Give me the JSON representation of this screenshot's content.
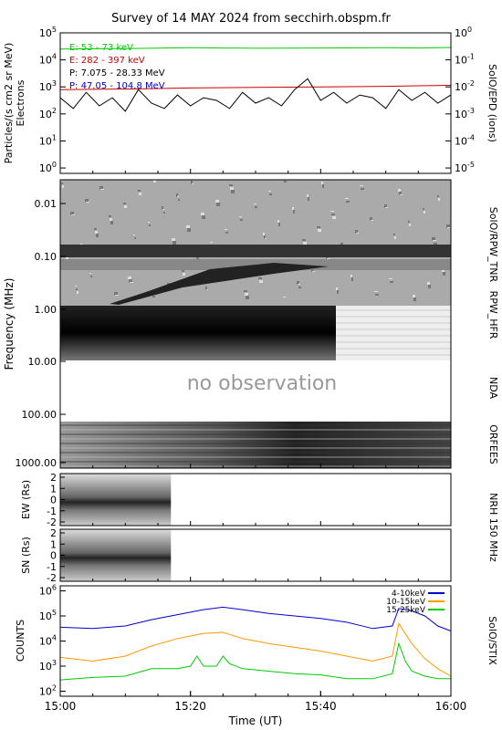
{
  "title": "Survey of 14 MAY 2024 from secchirh.obspm.fr",
  "chart_data": [
    {
      "id": "epd",
      "type": "line",
      "ylabel": "Particles/(s cm2 sr MeV)",
      "ylabel2": "Electrons",
      "right_label": "SolO/EPD (ions)",
      "ylim_log10": [
        -0.2,
        5
      ],
      "yticks_left": [
        "10^0",
        "10^1",
        "10^2",
        "10^3",
        "10^4",
        "10^5"
      ],
      "yticks_right": [
        "10^-5",
        "10^-4",
        "10^-3",
        "10^-2",
        "10^-1",
        "10^0"
      ],
      "legend": [
        {
          "text": "E: 53 - 73 keV",
          "color": "#00cc00"
        },
        {
          "text": "E: 282 - 397 keV",
          "color": "#cc0000"
        },
        {
          "text": "P: 7.075 - 28.33 MeV",
          "color": "#000000"
        },
        {
          "text": "P: 47.05 - 104.8 MeV",
          "color": "#0000cc"
        }
      ],
      "series": [
        {
          "name": "E: 53 - 73 keV",
          "color": "#00cc00",
          "x": [
            0,
            10,
            20,
            30,
            40,
            50,
            55,
            60
          ],
          "log_values": [
            4.4,
            4.42,
            4.45,
            4.43,
            4.44,
            4.45,
            4.44,
            4.46
          ]
        },
        {
          "name": "E: 282 - 397 keV",
          "color": "#cc0000",
          "x": [
            0,
            10,
            20,
            30,
            40,
            50,
            55,
            60
          ],
          "log_values": [
            2.9,
            2.92,
            2.96,
            2.98,
            3.0,
            3.02,
            3.04,
            3.06
          ]
        },
        {
          "name": "P: 7.075 - 28.33 MeV",
          "color": "#000000",
          "x": [
            0,
            2,
            4,
            6,
            8,
            10,
            12,
            14,
            16,
            18,
            20,
            22,
            24,
            26,
            28,
            30,
            32,
            34,
            36,
            38,
            40,
            42,
            44,
            46,
            48,
            50,
            52,
            54,
            56,
            58,
            60
          ],
          "log_values": [
            2.6,
            2.2,
            2.8,
            2.3,
            2.6,
            2.1,
            2.9,
            2.4,
            2.2,
            2.7,
            2.3,
            2.6,
            2.5,
            2.2,
            2.8,
            2.4,
            2.6,
            2.3,
            2.9,
            3.3,
            2.5,
            2.8,
            2.4,
            2.7,
            2.6,
            2.2,
            2.9,
            2.5,
            2.8,
            2.4,
            2.7
          ]
        }
      ]
    },
    {
      "id": "spectro",
      "type": "heatmap",
      "ylabel": "Frequency (MHz)",
      "yticks": [
        "0.01",
        "0.10",
        "1.00",
        "10.00",
        "100.00",
        "1000.00"
      ],
      "bands": [
        "SolO/RPW_TNR",
        "RPW_HFR",
        "NDA",
        "ORFEES"
      ],
      "no_observation": "no observation"
    },
    {
      "id": "nrh",
      "type": "heatmap",
      "label": "NRH 150 MHz",
      "panels": [
        {
          "ylabel": "EW (Rs)",
          "yticks": [
            "2",
            "1",
            "0",
            "-1",
            "-2"
          ],
          "end_time": "15:17"
        },
        {
          "ylabel": "SN (Rs)",
          "yticks": [
            "2",
            "1",
            "0",
            "-1",
            "-2"
          ],
          "end_time": "15:17"
        }
      ]
    },
    {
      "id": "stix",
      "type": "line",
      "ylabel": "COUNTS",
      "right_label": "SolO/STIX",
      "ylim_log10": [
        1.8,
        6.2
      ],
      "yticks": [
        "10^2",
        "10^3",
        "10^4",
        "10^5",
        "10^6"
      ],
      "legend": [
        {
          "text": "4-10keV",
          "color": "#0000cc"
        },
        {
          "text": "10-15keV",
          "color": "#ff9900"
        },
        {
          "text": "15-25keV",
          "color": "#00cc00"
        }
      ],
      "series": [
        {
          "name": "4-10keV",
          "color": "#0000cc",
          "x": [
            0,
            5,
            10,
            14,
            18,
            22,
            25,
            28,
            32,
            36,
            40,
            44,
            48,
            51,
            52,
            54,
            56,
            58,
            60
          ],
          "log_values": [
            4.55,
            4.5,
            4.6,
            4.85,
            5.05,
            5.25,
            5.35,
            5.25,
            5.1,
            5.0,
            4.9,
            4.75,
            4.5,
            4.6,
            5.3,
            5.2,
            5.0,
            4.6,
            4.4
          ]
        },
        {
          "name": "10-15keV",
          "color": "#ff9900",
          "x": [
            0,
            5,
            10,
            14,
            18,
            20,
            22,
            25,
            28,
            32,
            36,
            40,
            44,
            48,
            51,
            52,
            54,
            56,
            58,
            60
          ],
          "log_values": [
            3.35,
            3.2,
            3.4,
            3.8,
            4.1,
            4.2,
            4.3,
            4.35,
            4.1,
            3.9,
            3.75,
            3.6,
            3.4,
            3.2,
            3.4,
            4.7,
            3.9,
            3.3,
            2.9,
            2.6
          ]
        },
        {
          "name": "15-25keV",
          "color": "#00cc00",
          "x": [
            0,
            5,
            10,
            14,
            18,
            20,
            21,
            22,
            24,
            25,
            26,
            28,
            32,
            36,
            40,
            44,
            48,
            51,
            52,
            53,
            54,
            56,
            58,
            60
          ],
          "log_values": [
            2.45,
            2.55,
            2.6,
            2.9,
            2.9,
            3.0,
            3.4,
            3.0,
            3.0,
            3.4,
            3.1,
            2.9,
            2.8,
            2.7,
            2.65,
            2.5,
            2.5,
            2.7,
            3.9,
            3.2,
            2.8,
            2.6,
            2.5,
            2.5
          ]
        }
      ]
    }
  ],
  "xaxis": {
    "label": "Time (UT)",
    "ticks": [
      "15:00",
      "15:20",
      "15:40",
      "16:00"
    ]
  }
}
